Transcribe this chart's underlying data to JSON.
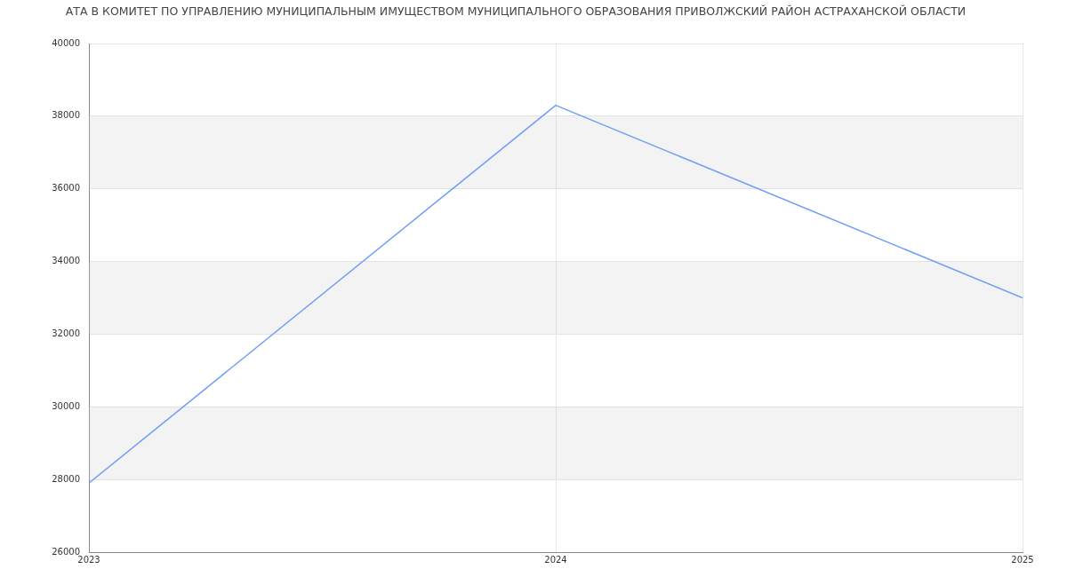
{
  "chart_data": {
    "type": "line",
    "title": "АТА В КОМИТЕТ ПО УПРАВЛЕНИЮ МУНИЦИПАЛЬНЫМ ИМУЩЕСТВОМ МУНИЦИПАЛЬНОГО ОБРАЗОВАНИЯ ПРИВОЛЖСКИЙ РАЙОН АСТРАХАНСКОЙ ОБЛАСТИ",
    "x": [
      2023,
      2024,
      2025
    ],
    "series": [
      {
        "color": "#6f9ef8",
        "values": [
          27900,
          38300,
          33000
        ]
      }
    ],
    "xlim": [
      2023,
      2025
    ],
    "xticks": [
      2023,
      2024,
      2025
    ],
    "ylim": [
      26000,
      40000
    ],
    "yticks": [
      26000,
      28000,
      30000,
      32000,
      34000,
      36000,
      38000,
      40000
    ],
    "grid": true,
    "marker": "none",
    "line_style": "solid"
  }
}
